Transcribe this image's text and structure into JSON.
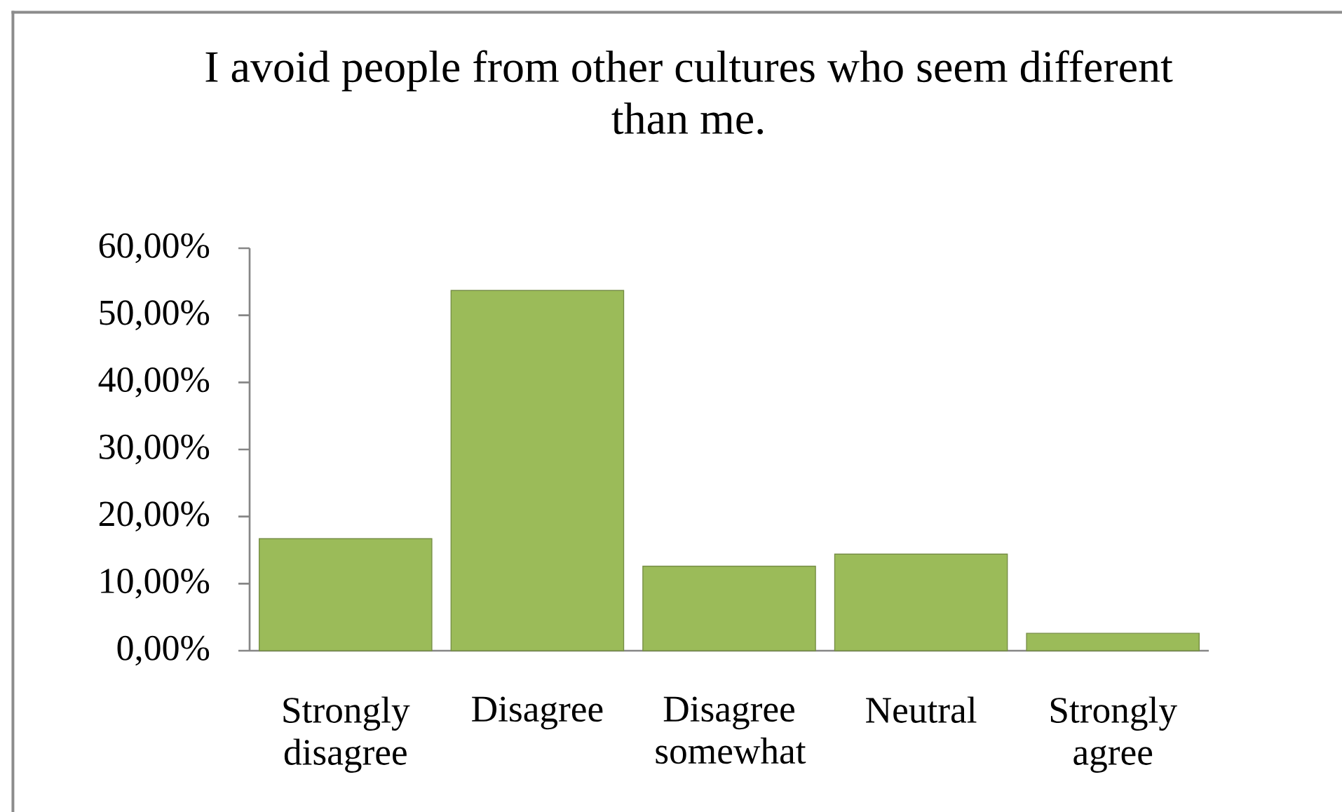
{
  "chart_data": {
    "type": "bar",
    "title": "I avoid people from other cultures who seem different than me.",
    "categories": [
      "Strongly disagree",
      "Disagree",
      "Disagree somewhat",
      "Neutral",
      "Strongly agree"
    ],
    "values": [
      16.7,
      53.7,
      12.6,
      14.4,
      2.6
    ],
    "color": "#9bbb59",
    "ylim": [
      0,
      60
    ],
    "yticks": [
      {
        "value": 0,
        "label": "0,00%"
      },
      {
        "value": 10,
        "label": "10,00%"
      },
      {
        "value": 20,
        "label": "20,00%"
      },
      {
        "value": 30,
        "label": "30,00%"
      },
      {
        "value": 40,
        "label": "40,00%"
      },
      {
        "value": 50,
        "label": "50,00%"
      },
      {
        "value": 60,
        "label": "60,00%"
      }
    ]
  }
}
